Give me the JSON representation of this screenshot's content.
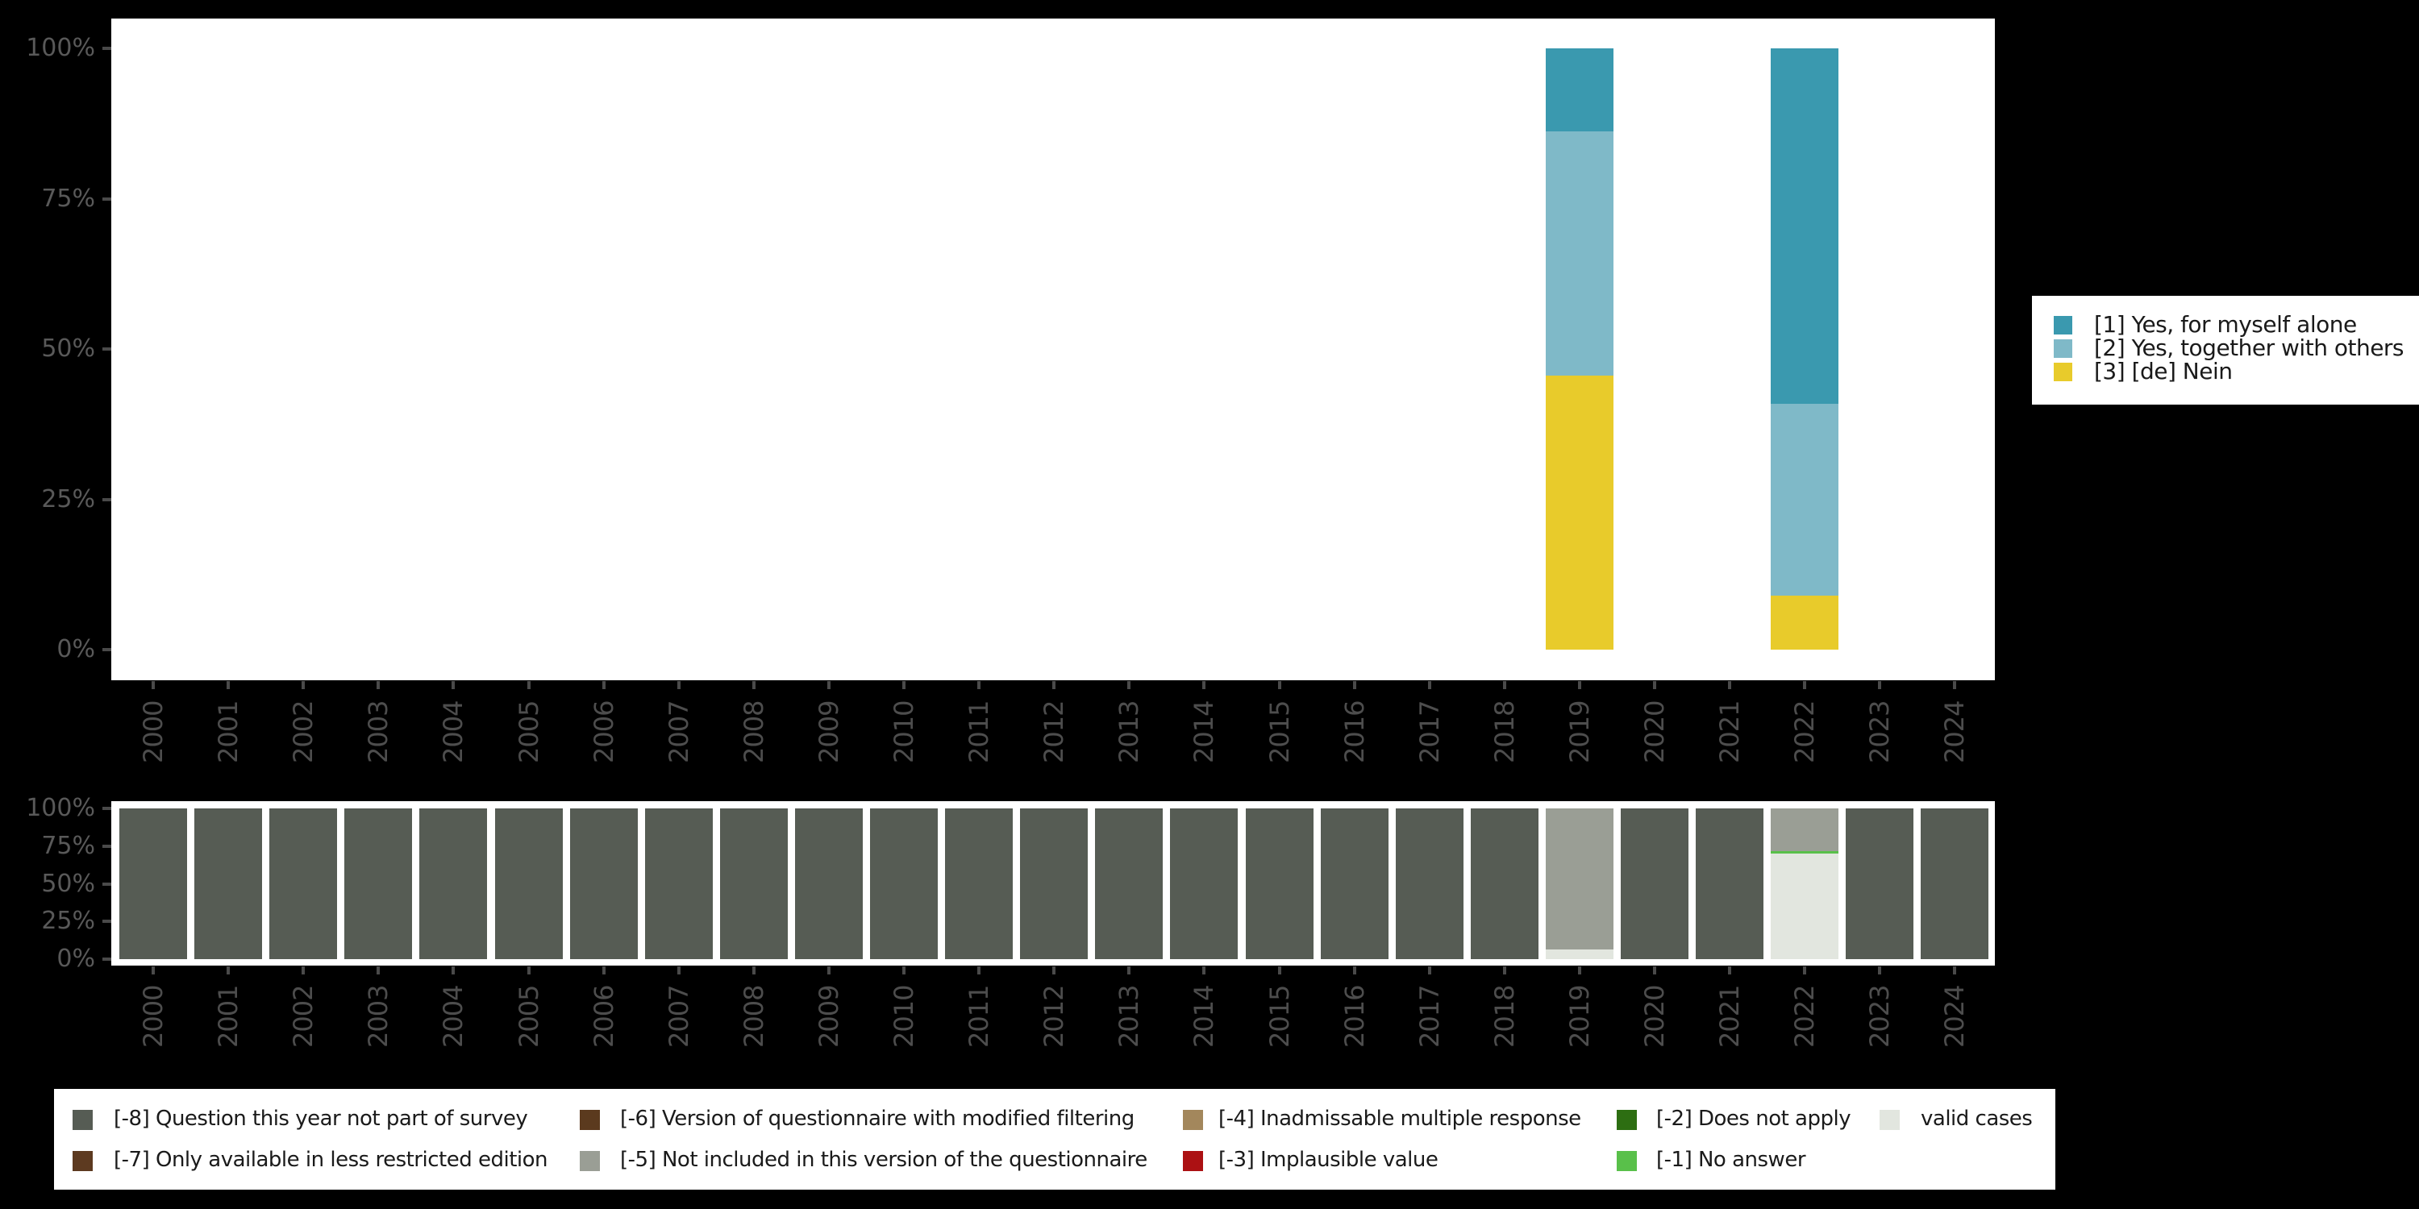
{
  "canvas": {
    "background": "#000000",
    "panel_background": "#ffffff"
  },
  "axis_style": {
    "tick_color": "#4a4a4a",
    "y_label_color": "#595959",
    "x_label_color": "#4d4d4d",
    "legend_text_color": "#1a1a1a"
  },
  "chart_data": [
    {
      "type": "bar",
      "stacked": true,
      "title": "",
      "xlabel": "",
      "ylabel": "",
      "ylim": [
        0,
        100
      ],
      "grid": false,
      "legend_position": "right",
      "yticks": [
        "100%",
        "75%",
        "50%",
        "25%",
        "0%"
      ],
      "categories": [
        "2000",
        "2001",
        "2002",
        "2003",
        "2004",
        "2005",
        "2006",
        "2007",
        "2008",
        "2009",
        "2010",
        "2011",
        "2012",
        "2013",
        "2014",
        "2015",
        "2016",
        "2017",
        "2018",
        "2019",
        "2020",
        "2021",
        "2022",
        "2023",
        "2024"
      ],
      "series": [
        {
          "name": "[1] Yes, for myself alone",
          "color": "#3a99af",
          "values": [
            0,
            0,
            0,
            0,
            0,
            0,
            0,
            0,
            0,
            0,
            0,
            0,
            0,
            0,
            0,
            0,
            0,
            0,
            0,
            13.8,
            0,
            0,
            59.1,
            0,
            0
          ]
        },
        {
          "name": "[2] Yes, together with others",
          "color": "#7fb9c8",
          "values": [
            0,
            0,
            0,
            0,
            0,
            0,
            0,
            0,
            0,
            0,
            0,
            0,
            0,
            0,
            0,
            0,
            0,
            0,
            0,
            40.6,
            0,
            0,
            31.9,
            0,
            0
          ]
        },
        {
          "name": "[3] [de] Nein",
          "color": "#e8cb2b",
          "values": [
            0,
            0,
            0,
            0,
            0,
            0,
            0,
            0,
            0,
            0,
            0,
            0,
            0,
            0,
            0,
            0,
            0,
            0,
            0,
            45.6,
            0,
            0,
            9,
            0,
            0
          ]
        }
      ]
    },
    {
      "type": "bar",
      "stacked": true,
      "title": "",
      "xlabel": "",
      "ylabel": "",
      "ylim": [
        0,
        100
      ],
      "grid": false,
      "legend_position": "bottom",
      "yticks": [
        "100%",
        "75%",
        "50%",
        "25%",
        "0%"
      ],
      "categories": [
        "2000",
        "2001",
        "2002",
        "2003",
        "2004",
        "2005",
        "2006",
        "2007",
        "2008",
        "2009",
        "2010",
        "2011",
        "2012",
        "2013",
        "2014",
        "2015",
        "2016",
        "2017",
        "2018",
        "2019",
        "2020",
        "2021",
        "2022",
        "2023",
        "2024"
      ],
      "series": [
        {
          "name": "[-8] Question this year not part of survey",
          "color": "#565c54",
          "values": [
            100,
            100,
            100,
            100,
            100,
            100,
            100,
            100,
            100,
            100,
            100,
            100,
            100,
            100,
            100,
            100,
            100,
            100,
            100,
            0,
            100,
            100,
            0,
            100,
            100
          ]
        },
        {
          "name": "[-5] Not included in this version of the questionnaire",
          "color": "#9a9e95",
          "values": [
            0,
            0,
            0,
            0,
            0,
            0,
            0,
            0,
            0,
            0,
            0,
            0,
            0,
            0,
            0,
            0,
            0,
            0,
            0,
            93.5,
            0,
            0,
            28.2,
            0,
            0
          ]
        },
        {
          "name": "[-1] No answer",
          "color": "#59c04a",
          "values": [
            0,
            0,
            0,
            0,
            0,
            0,
            0,
            0,
            0,
            0,
            0,
            0,
            0,
            0,
            0,
            0,
            0,
            0,
            0,
            0,
            0,
            0,
            1.6,
            0,
            0
          ]
        },
        {
          "name": "valid cases",
          "color": "#e2e6df",
          "values": [
            0,
            0,
            0,
            0,
            0,
            0,
            0,
            0,
            0,
            0,
            0,
            0,
            0,
            0,
            0,
            0,
            0,
            0,
            0,
            6.5,
            0,
            0,
            70.2,
            0,
            0
          ]
        }
      ],
      "legend_items": [
        {
          "label": "[-8] Question this year not part of survey",
          "color": "#565c54"
        },
        {
          "label": "[-7] Only available in less restricted edition",
          "color": "#5d3a20"
        },
        {
          "label": "[-6] Version of questionnaire with modified filtering",
          "color": "#5b3a1e"
        },
        {
          "label": "[-5] Not included in this version of the questionnaire",
          "color": "#9a9e95"
        },
        {
          "label": "[-4] Inadmissable multiple response",
          "color": "#a3875c"
        },
        {
          "label": "[-3] Implausible value",
          "color": "#ac1113"
        },
        {
          "label": "[-2] Does not apply",
          "color": "#2d6e12"
        },
        {
          "label": "[-1] No answer",
          "color": "#59c04a"
        },
        {
          "label": "valid cases",
          "color": "#e2e6df"
        }
      ]
    }
  ]
}
